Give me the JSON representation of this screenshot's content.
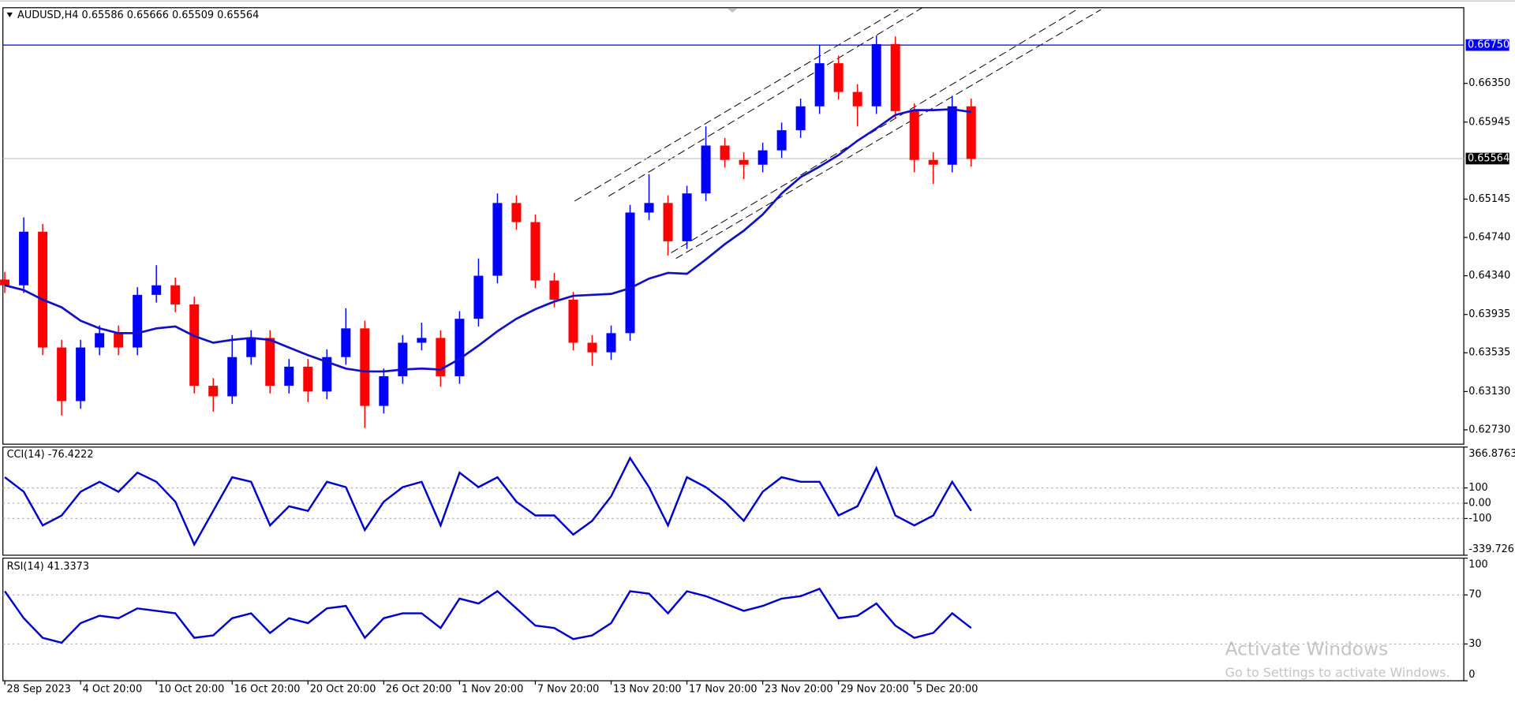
{
  "chart_data": [
    {
      "type": "candlestick",
      "title": "AUDUSD,H4  0.65586 0.65666 0.65509 0.65564",
      "x": [
        0,
        1,
        2,
        3,
        4,
        5,
        6,
        7,
        8,
        9,
        10,
        11,
        12,
        13,
        14,
        15,
        16,
        17,
        18,
        19,
        20,
        21,
        22,
        23,
        24,
        25,
        26,
        27,
        28,
        29,
        30,
        31,
        32,
        33,
        34,
        35,
        36,
        37,
        38,
        39,
        40,
        41,
        42,
        43,
        44,
        45,
        46,
        47,
        48,
        49,
        50,
        51
      ],
      "open": [
        0.643,
        0.6424,
        0.648,
        0.6359,
        0.6303,
        0.6359,
        0.6374,
        0.6359,
        0.6414,
        0.6424,
        0.6404,
        0.6319,
        0.6308,
        0.6349,
        0.6369,
        0.6319,
        0.6339,
        0.6313,
        0.6349,
        0.6379,
        0.6298,
        0.6329,
        0.6364,
        0.6369,
        0.6329,
        0.6389,
        0.6434,
        0.651,
        0.649,
        0.6429,
        0.6409,
        0.6364,
        0.6354,
        0.6374,
        0.65,
        0.651,
        0.647,
        0.652,
        0.657,
        0.6555,
        0.655,
        0.6565,
        0.6586,
        0.6611,
        0.6656,
        0.6626,
        0.6611,
        0.6676,
        0.6606,
        0.6555,
        0.655,
        0.6611
      ],
      "high": [
        0.6438,
        0.6495,
        0.6488,
        0.6367,
        0.6367,
        0.6382,
        0.6382,
        0.6422,
        0.6445,
        0.6432,
        0.6412,
        0.6327,
        0.6372,
        0.6377,
        0.6377,
        0.6347,
        0.6347,
        0.6357,
        0.64,
        0.6387,
        0.6337,
        0.6372,
        0.6385,
        0.6377,
        0.6397,
        0.6452,
        0.652,
        0.6518,
        0.6498,
        0.6437,
        0.6417,
        0.6372,
        0.6382,
        0.6508,
        0.654,
        0.6518,
        0.6528,
        0.659,
        0.6578,
        0.6563,
        0.6573,
        0.6594,
        0.6619,
        0.6675,
        0.6664,
        0.6634,
        0.6685,
        0.6684,
        0.6614,
        0.6563,
        0.6622,
        0.6619
      ],
      "low": [
        0.6416,
        0.6416,
        0.6351,
        0.6288,
        0.6295,
        0.6351,
        0.6351,
        0.6351,
        0.6406,
        0.6396,
        0.6311,
        0.6292,
        0.63,
        0.6341,
        0.6311,
        0.6311,
        0.6302,
        0.6305,
        0.6341,
        0.6275,
        0.629,
        0.6321,
        0.6356,
        0.6318,
        0.6321,
        0.6381,
        0.6426,
        0.6482,
        0.6421,
        0.6401,
        0.6356,
        0.634,
        0.6346,
        0.6366,
        0.6492,
        0.6455,
        0.6462,
        0.6512,
        0.6547,
        0.6535,
        0.6542,
        0.6557,
        0.6578,
        0.6603,
        0.6618,
        0.659,
        0.6603,
        0.6598,
        0.6542,
        0.653,
        0.6542,
        0.6548
      ],
      "close": [
        0.6424,
        0.648,
        0.6359,
        0.6303,
        0.6359,
        0.6374,
        0.6359,
        0.6414,
        0.6424,
        0.6404,
        0.6319,
        0.6308,
        0.6349,
        0.6369,
        0.6319,
        0.6339,
        0.6313,
        0.6349,
        0.6379,
        0.6298,
        0.6329,
        0.6364,
        0.6369,
        0.6329,
        0.6389,
        0.6434,
        0.651,
        0.649,
        0.6429,
        0.6409,
        0.6364,
        0.6354,
        0.6374,
        0.65,
        0.651,
        0.647,
        0.652,
        0.657,
        0.6555,
        0.655,
        0.6565,
        0.6586,
        0.6611,
        0.6656,
        0.6626,
        0.6611,
        0.6676,
        0.6606,
        0.6555,
        0.655,
        0.6611,
        0.6556
      ],
      "up_color": "#0000ff",
      "down_color": "#ff0000",
      "overlays": [
        {
          "color": "#1010c8",
          "values": [
            0.6424,
            0.6419,
            0.6409,
            0.6401,
            0.6387,
            0.6379,
            0.6374,
            0.6374,
            0.6379,
            0.6381,
            0.6371,
            0.6364,
            0.6367,
            0.6369,
            0.6367,
            0.6359,
            0.6351,
            0.6344,
            0.6337,
            0.6334,
            0.6334,
            0.6336,
            0.6337,
            0.6336,
            0.6347,
            0.6361,
            0.6376,
            0.6389,
            0.6399,
            0.6407,
            0.6413,
            0.6414,
            0.6415,
            0.6421,
            0.6431,
            0.6437,
            0.6436,
            0.6451,
            0.6467,
            0.6481,
            0.6498,
            0.652,
            0.6537,
            0.6548,
            0.656,
            0.6575,
            0.6588,
            0.6602,
            0.6607,
            0.6607,
            0.6608,
            0.6605
          ]
        }
      ],
      "hlines": [
        {
          "value": 0.6675,
          "label": "0.66750",
          "color": "#0000ff",
          "label_color": "#0000ff"
        },
        {
          "value": 0.65564,
          "label": "0.65564",
          "color": "#c8c8c8",
          "label_color": "#000000"
        }
      ],
      "trendlines": [
        {
          "x": [
            30.07,
            47.15
          ],
          "y": [
            0.6512,
            0.6712
          ]
        },
        {
          "x": [
            31.86,
            48.42
          ],
          "y": [
            0.6517,
            0.6714
          ]
        },
        {
          "x": [
            35.42,
            57.85
          ],
          "y": [
            0.6452,
            0.6712
          ]
        },
        {
          "x": [
            35.17,
            56.57
          ],
          "y": [
            0.6458,
            0.6712
          ]
        }
      ],
      "xlim": [
        -0.1,
        77
      ],
      "xticks": [
        {
          "value": 0,
          "label": "28 Sep 2023"
        },
        {
          "value": 4,
          "label": "4 Oct 20:00"
        },
        {
          "value": 8,
          "label": "10 Oct 20:00"
        },
        {
          "value": 12,
          "label": "16 Oct 20:00"
        },
        {
          "value": 16,
          "label": "20 Oct 20:00"
        },
        {
          "value": 20,
          "label": "26 Oct 20:00"
        },
        {
          "value": 24,
          "label": "1 Nov 20:00"
        },
        {
          "value": 28,
          "label": "7 Nov 20:00"
        },
        {
          "value": 32,
          "label": "13 Nov 20:00"
        },
        {
          "value": 36,
          "label": "17 Nov 20:00"
        },
        {
          "value": 40,
          "label": "23 Nov 20:00"
        },
        {
          "value": 44,
          "label": "29 Nov 20:00"
        },
        {
          "value": 48,
          "label": "5 Dec 20:00"
        }
      ],
      "ylim": [
        0.6258,
        0.6714
      ],
      "yticks": [
        {
          "value": 0.6635,
          "label": "0.66350"
        },
        0.65945,
        {
          "value": 0.6514,
          "label": "0.65145"
        },
        {
          "value": 0.6474,
          "label": "0.64740"
        },
        {
          "value": 0.6434,
          "label": "0.64340"
        },
        0.63935,
        {
          "value": 0.63535,
          "label": "0.63535"
        },
        {
          "value": 0.6313,
          "label": "0.63130"
        },
        {
          "value": 0.6273,
          "label": "0.62730"
        }
      ],
      "grid": false
    },
    {
      "type": "line",
      "title": "CCI(14) -76.4222",
      "color": "#0000cd",
      "x": [
        0,
        1,
        2,
        3,
        4,
        5,
        6,
        7,
        8,
        9,
        10,
        11,
        12,
        13,
        14,
        15,
        16,
        17,
        18,
        19,
        20,
        21,
        22,
        23,
        24,
        25,
        26,
        27,
        28,
        29,
        30,
        31,
        32,
        33,
        34,
        35,
        36,
        37,
        38,
        39,
        40,
        41,
        42,
        43,
        44,
        45,
        46,
        47,
        48,
        49,
        50,
        51
      ],
      "values": [
        170,
        75,
        -145,
        -80,
        75,
        140,
        75,
        200,
        140,
        10,
        -270,
        -50,
        170,
        140,
        -145,
        -20,
        -50,
        140,
        105,
        -175,
        10,
        105,
        140,
        -145,
        200,
        105,
        170,
        10,
        -80,
        -80,
        -205,
        -115,
        45,
        295,
        105,
        -145,
        170,
        105,
        10,
        -115,
        75,
        170,
        140,
        140,
        -80,
        -20,
        230,
        -80,
        -145,
        -80,
        140,
        -50
      ],
      "xlim": [
        -0.1,
        77
      ],
      "ylim": [
        -339.7266,
        366.8763
      ],
      "yticks": [
        366.8763,
        100,
        {
          "value": 0,
          "label": "0.00"
        },
        -100,
        -339.7266
      ],
      "grid": true
    },
    {
      "type": "line",
      "title": "RSI(14) 41.3373",
      "color": "#0000cd",
      "x": [
        0,
        1,
        2,
        3,
        4,
        5,
        6,
        7,
        8,
        9,
        10,
        11,
        12,
        13,
        14,
        15,
        16,
        17,
        18,
        19,
        20,
        21,
        22,
        23,
        24,
        25,
        26,
        27,
        28,
        29,
        30,
        31,
        32,
        33,
        34,
        35,
        36,
        37,
        38,
        39,
        40,
        41,
        42,
        43,
        44,
        45,
        46,
        47,
        48,
        49,
        50,
        51
      ],
      "values": [
        73,
        51,
        35,
        31,
        47,
        53,
        51,
        59,
        57,
        55,
        35,
        37,
        51,
        55,
        39,
        51,
        47,
        59,
        61,
        35,
        51,
        55,
        55,
        43,
        67,
        63,
        73,
        59,
        45,
        43,
        34,
        37,
        47,
        73,
        71,
        55,
        73,
        69,
        63,
        57,
        61,
        67,
        69,
        75,
        51,
        53,
        63,
        45,
        35,
        39,
        55,
        43
      ],
      "xlim": [
        -0.1,
        77
      ],
      "ylim": [
        0,
        100
      ],
      "yticks": [
        100,
        70,
        30,
        0
      ],
      "grid": true
    }
  ],
  "watermark": {
    "title": "Activate Windows",
    "subtitle": "Go to Settings to activate Windows."
  }
}
